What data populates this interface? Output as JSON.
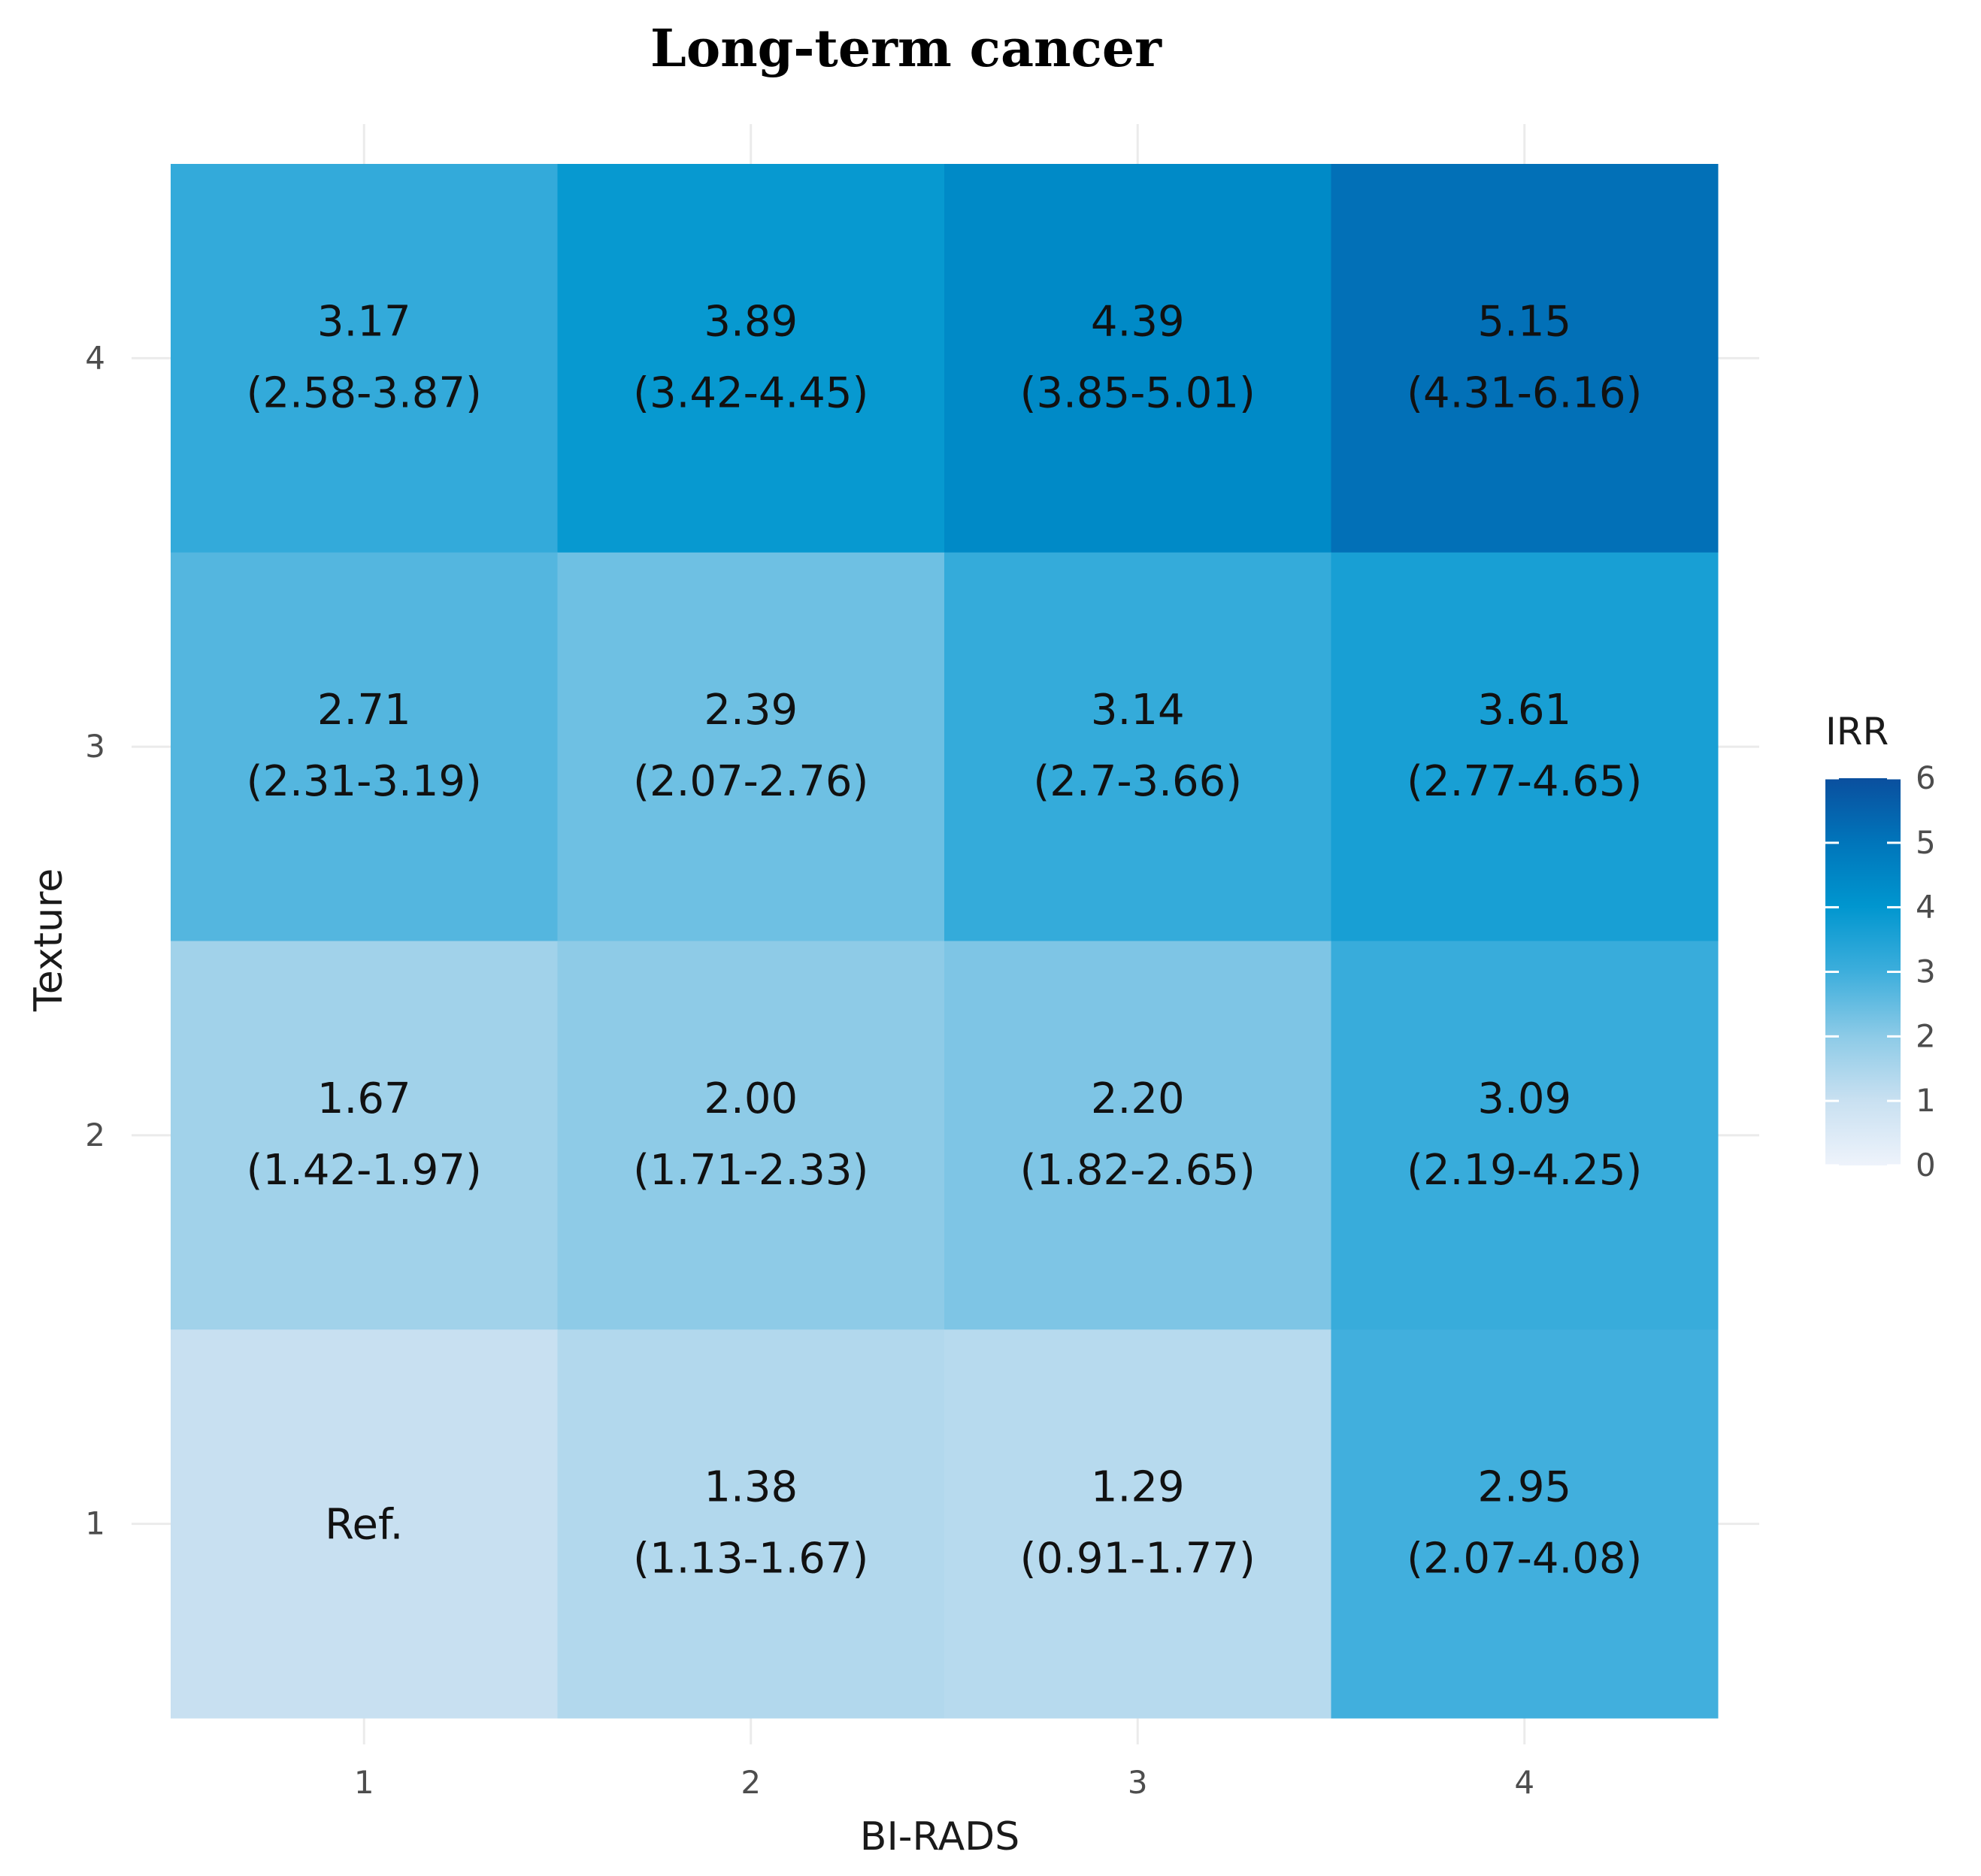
{
  "chart_data": {
    "type": "heatmap",
    "title": "Long-term cancer",
    "xlabel": "BI-RADS",
    "ylabel": "Texture",
    "x_categories": [
      "1",
      "2",
      "3",
      "4"
    ],
    "y_categories": [
      "1",
      "2",
      "3",
      "4"
    ],
    "legend": {
      "title": "IRR",
      "range": [
        0,
        6
      ],
      "ticks": [
        "0",
        "1",
        "2",
        "3",
        "4",
        "5",
        "6"
      ],
      "low_color": "#eef3fb",
      "high_color": "#0a4f9e",
      "placement": "right"
    },
    "cells": [
      {
        "x": "1",
        "y": "4",
        "value": 3.17,
        "label": "3.17",
        "ci": "(2.58-3.87)"
      },
      {
        "x": "2",
        "y": "4",
        "value": 3.89,
        "label": "3.89",
        "ci": "(3.42-4.45)"
      },
      {
        "x": "3",
        "y": "4",
        "value": 4.39,
        "label": "4.39",
        "ci": "(3.85-5.01)"
      },
      {
        "x": "4",
        "y": "4",
        "value": 5.15,
        "label": "5.15",
        "ci": "(4.31-6.16)"
      },
      {
        "x": "1",
        "y": "3",
        "value": 2.71,
        "label": "2.71",
        "ci": "(2.31-3.19)"
      },
      {
        "x": "2",
        "y": "3",
        "value": 2.39,
        "label": "2.39",
        "ci": "(2.07-2.76)"
      },
      {
        "x": "3",
        "y": "3",
        "value": 3.14,
        "label": "3.14",
        "ci": "(2.7-3.66)"
      },
      {
        "x": "4",
        "y": "3",
        "value": 3.61,
        "label": "3.61",
        "ci": "(2.77-4.65)"
      },
      {
        "x": "1",
        "y": "2",
        "value": 1.67,
        "label": "1.67",
        "ci": "(1.42-1.97)"
      },
      {
        "x": "2",
        "y": "2",
        "value": 2.0,
        "label": "2.00",
        "ci": "(1.71-2.33)"
      },
      {
        "x": "3",
        "y": "2",
        "value": 2.2,
        "label": "2.20",
        "ci": "(1.82-2.65)"
      },
      {
        "x": "4",
        "y": "2",
        "value": 3.09,
        "label": "3.09",
        "ci": "(2.19-4.25)"
      },
      {
        "x": "1",
        "y": "1",
        "value": 1.0,
        "label": "Ref.",
        "ci": ""
      },
      {
        "x": "2",
        "y": "1",
        "value": 1.38,
        "label": "1.38",
        "ci": "(1.13-1.67)"
      },
      {
        "x": "3",
        "y": "1",
        "value": 1.29,
        "label": "1.29",
        "ci": "(0.91-1.77)"
      },
      {
        "x": "4",
        "y": "1",
        "value": 2.95,
        "label": "2.95",
        "ci": "(2.07-4.08)"
      }
    ],
    "grid": true
  }
}
